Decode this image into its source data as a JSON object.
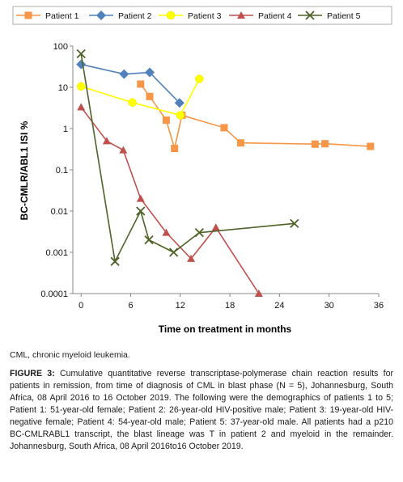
{
  "chart_data": {
    "type": "line",
    "xlabel": "Time on treatment in months",
    "ylabel": "BC-CMLR/ABL1 ISI %",
    "xlim": [
      -1,
      36
    ],
    "ylim": [
      0.0001,
      100
    ],
    "yscale": "log",
    "xticks": [
      "0",
      "6",
      "12",
      "18",
      "24",
      "30",
      "36"
    ],
    "yticks": [
      "100",
      "10",
      "1",
      "0.1",
      "0.01",
      "0.001",
      "0.0001"
    ],
    "grid": false,
    "legend_position": "top",
    "series": [
      {
        "name": "Patient 1",
        "color": "#F79646",
        "marker": "square",
        "x": [
          7.2,
          8.3,
          10.3,
          11.3,
          12.2,
          17.3,
          19.3,
          28.3,
          29.5,
          35.0
        ],
        "y": [
          12,
          6,
          1.6,
          0.33,
          2.1,
          1.05,
          0.45,
          0.42,
          0.43,
          0.37
        ]
      },
      {
        "name": "Patient 2",
        "color": "#4F81BD",
        "marker": "diamond",
        "x": [
          0,
          5.2,
          8.3,
          11.9
        ],
        "y": [
          36,
          21,
          23,
          4.2
        ]
      },
      {
        "name": "Patient 3",
        "color": "#FFFF00",
        "marker": "circle",
        "x": [
          0,
          6.2,
          12.0,
          14.3
        ],
        "y": [
          10.5,
          4.3,
          2.1,
          16
        ]
      },
      {
        "name": "Patient 4",
        "color": "#C0504D",
        "marker": "triangle",
        "x": [
          0,
          3.1,
          5.1,
          7.2,
          10.3,
          13.3,
          16.3,
          21.5
        ],
        "y": [
          3.3,
          0.5,
          0.3,
          0.02,
          0.003,
          0.0007,
          0.004,
          0.0001
        ]
      },
      {
        "name": "Patient 5",
        "color": "#4F6228",
        "marker": "x",
        "x": [
          0,
          4.1,
          7.2,
          8.2,
          11.2,
          14.3,
          25.8
        ],
        "y": [
          65,
          0.0006,
          0.01,
          0.002,
          0.001,
          0.003,
          0.005
        ]
      }
    ]
  },
  "abbreviation_note": "CML, chronic myeloid leukemia.",
  "caption": {
    "lead": "FIGURE 3:",
    "text": " Cumulative quantitative reverse transcriptase-polymerase chain reaction results for patients in remission, from time of diagnosis of CML in blast phase (N = 5), Johannesburg, South Africa, 08 April 2016 to 16 October 2019. The following were the demographics of patients 1 to 5; Patient 1: 51-year-old female; Patient 2: 26-year-old HIV-positive male; Patient 3: 19-year-old HIV-negative female; Patient 4: 54-year-old male; Patient 5: 37-year-old male. All patients had a p210 BC-CMLRABL1 transcript, the blast lineage was T in patient 2 and myeloid in the remainder. Johannesburg, South Africa, 08 April 2016to16 October 2019."
  }
}
